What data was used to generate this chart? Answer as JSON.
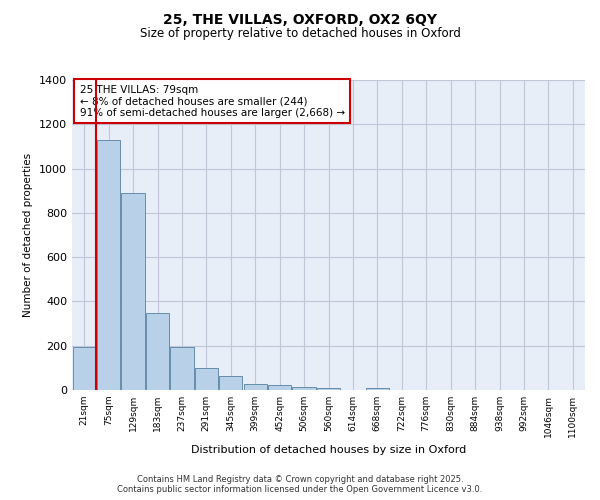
{
  "title_line1": "25, THE VILLAS, OXFORD, OX2 6QY",
  "title_line2": "Size of property relative to detached houses in Oxford",
  "xlabel": "Distribution of detached houses by size in Oxford",
  "ylabel": "Number of detached properties",
  "categories": [
    "21sqm",
    "75sqm",
    "129sqm",
    "183sqm",
    "237sqm",
    "291sqm",
    "345sqm",
    "399sqm",
    "452sqm",
    "506sqm",
    "560sqm",
    "614sqm",
    "668sqm",
    "722sqm",
    "776sqm",
    "830sqm",
    "884sqm",
    "938sqm",
    "992sqm",
    "1046sqm",
    "1100sqm"
  ],
  "values": [
    195,
    1130,
    890,
    350,
    195,
    100,
    62,
    25,
    22,
    15,
    8,
    0,
    8,
    0,
    0,
    0,
    0,
    0,
    0,
    0,
    0
  ],
  "bar_color": "#b8d0e8",
  "bar_edge_color": "#5580a0",
  "background_color": "#e8eef8",
  "grid_color": "#c0c8d8",
  "vline_color": "#cc0000",
  "annotation_text": "25 THE VILLAS: 79sqm\n← 8% of detached houses are smaller (244)\n91% of semi-detached houses are larger (2,668) →",
  "annotation_box_color": "#cc0000",
  "ylim": [
    0,
    1400
  ],
  "yticks": [
    0,
    200,
    400,
    600,
    800,
    1000,
    1200,
    1400
  ],
  "footer_line1": "Contains HM Land Registry data © Crown copyright and database right 2025.",
  "footer_line2": "Contains public sector information licensed under the Open Government Licence v3.0."
}
